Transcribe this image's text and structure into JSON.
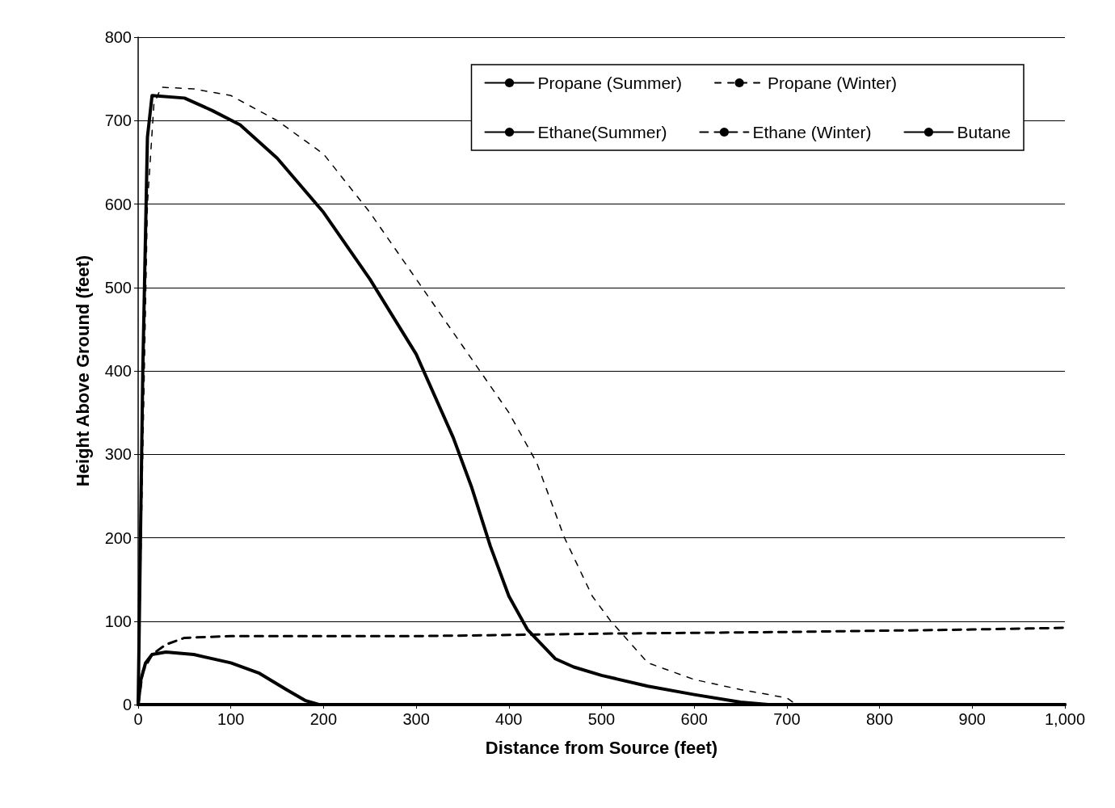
{
  "chart_data": {
    "type": "line",
    "xlabel": "Distance from Source (feet)",
    "ylabel": "Height Above Ground (feet)",
    "xlim": [
      0,
      1000
    ],
    "xticks": [
      0,
      100,
      200,
      300,
      400,
      500,
      600,
      700,
      800,
      900,
      {
        "value": 1000,
        "label": "1,000"
      }
    ],
    "ylim": [
      0,
      800
    ],
    "yticks": [
      0,
      100,
      200,
      300,
      400,
      500,
      600,
      700,
      800
    ],
    "grid": "y",
    "legend": "top right",
    "marker": "none",
    "series": [
      {
        "name": "Propane (Summer)",
        "color": "#000000",
        "line_style": "solid",
        "x": [
          0,
          5,
          10,
          15,
          50,
          80,
          110,
          150,
          200,
          250,
          300,
          340,
          360,
          380,
          400,
          420,
          450,
          470,
          500,
          550,
          600,
          650,
          680,
          1000
        ],
        "values": [
          0,
          400,
          680,
          730,
          727,
          712,
          695,
          655,
          590,
          510,
          420,
          320,
          260,
          190,
          130,
          90,
          55,
          45,
          35,
          22,
          12,
          3,
          0,
          0
        ]
      },
      {
        "name": "Propane (Winter)",
        "color": "#000000",
        "line_style": "dotted",
        "x": [
          0,
          5,
          10,
          17,
          25,
          60,
          100,
          150,
          200,
          250,
          300,
          350,
          400,
          430,
          460,
          490,
          510,
          550,
          600,
          650,
          700,
          710
        ],
        "values": [
          0,
          300,
          600,
          720,
          740,
          738,
          730,
          700,
          660,
          590,
          510,
          430,
          350,
          290,
          200,
          130,
          100,
          50,
          30,
          18,
          8,
          0
        ]
      },
      {
        "name": "Ethane(Summer)",
        "color": "#000000",
        "line_style": "solid",
        "x": [
          0,
          3,
          8,
          15,
          30,
          60,
          100,
          130,
          160,
          180,
          195
        ],
        "values": [
          0,
          30,
          50,
          60,
          63,
          60,
          50,
          38,
          18,
          5,
          0
        ]
      },
      {
        "name": "Ethane (Winter)",
        "color": "#000000",
        "line_style": "dashed",
        "x": [
          0,
          5,
          15,
          30,
          50,
          100,
          300,
          500,
          700,
          900,
          1000
        ],
        "values": [
          0,
          40,
          60,
          72,
          80,
          82,
          82,
          85,
          87,
          90,
          92
        ]
      },
      {
        "name": "Butane",
        "color": "#000000",
        "line_style": "solid",
        "x": [
          0,
          1000
        ],
        "values": [
          0,
          0
        ]
      }
    ]
  }
}
